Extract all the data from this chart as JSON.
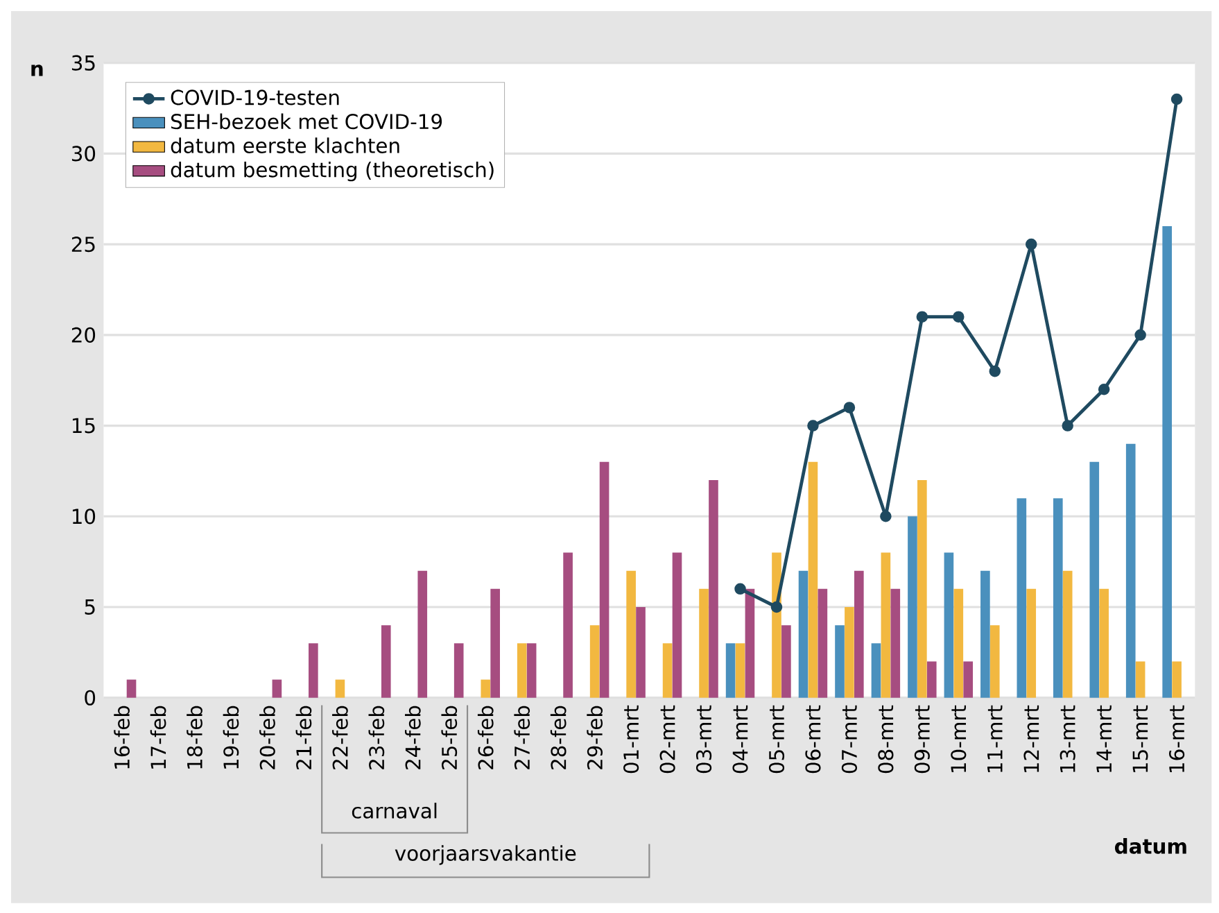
{
  "chart_data": {
    "type": "bar",
    "xlabel": "datum",
    "ylabel": "n",
    "categories": [
      "16-feb",
      "17-feb",
      "18-feb",
      "19-feb",
      "20-feb",
      "21-feb",
      "22-feb",
      "23-feb",
      "24-feb",
      "25-feb",
      "26-feb",
      "27-feb",
      "28-feb",
      "29-feb",
      "01-mrt",
      "02-mrt",
      "03-mrt",
      "04-mrt",
      "05-mrt",
      "06-mrt",
      "07-mrt",
      "08-mrt",
      "09-mrt",
      "10-mrt",
      "11-mrt",
      "12-mrt",
      "13-mrt",
      "14-mrt",
      "15-mrt",
      "16-mrt"
    ],
    "series": [
      {
        "name": "COVID-19-testen",
        "type": "line",
        "marker": "circle",
        "color": "#1f4a60",
        "values": [
          null,
          null,
          null,
          null,
          null,
          null,
          null,
          null,
          null,
          null,
          null,
          null,
          null,
          null,
          null,
          null,
          null,
          6,
          5,
          15,
          16,
          10,
          21,
          21,
          18,
          25,
          15,
          17,
          20,
          33
        ]
      },
      {
        "name": "SEH-bezoek met COVID-19",
        "color": "#4a90bd",
        "values": [
          0,
          0,
          0,
          0,
          0,
          0,
          0,
          0,
          0,
          0,
          0,
          0,
          0,
          0,
          0,
          0,
          0,
          3,
          0,
          7,
          4,
          3,
          10,
          8,
          7,
          11,
          11,
          13,
          14,
          26
        ]
      },
      {
        "name": "datum eerste klachten",
        "color": "#f2b840",
        "values": [
          0,
          0,
          0,
          0,
          0,
          0,
          1,
          0,
          0,
          0,
          1,
          3,
          0,
          4,
          7,
          3,
          6,
          3,
          8,
          13,
          5,
          8,
          12,
          6,
          4,
          6,
          7,
          6,
          2,
          2
        ]
      },
      {
        "name": "datum besmetting (theoretisch)",
        "color": "#a64d80",
        "values": [
          1,
          0,
          0,
          0,
          1,
          3,
          0,
          4,
          7,
          3,
          6,
          3,
          8,
          13,
          5,
          8,
          12,
          6,
          4,
          6,
          7,
          6,
          2,
          2,
          0,
          0,
          0,
          0,
          0,
          0
        ]
      }
    ],
    "ylim": [
      0,
      35
    ],
    "yticks": [
      0,
      5,
      10,
      15,
      20,
      25,
      30,
      35
    ],
    "grid": "y",
    "legend": "top left",
    "annotations": [
      "carnaval",
      "voorjaarsvakantie"
    ]
  }
}
